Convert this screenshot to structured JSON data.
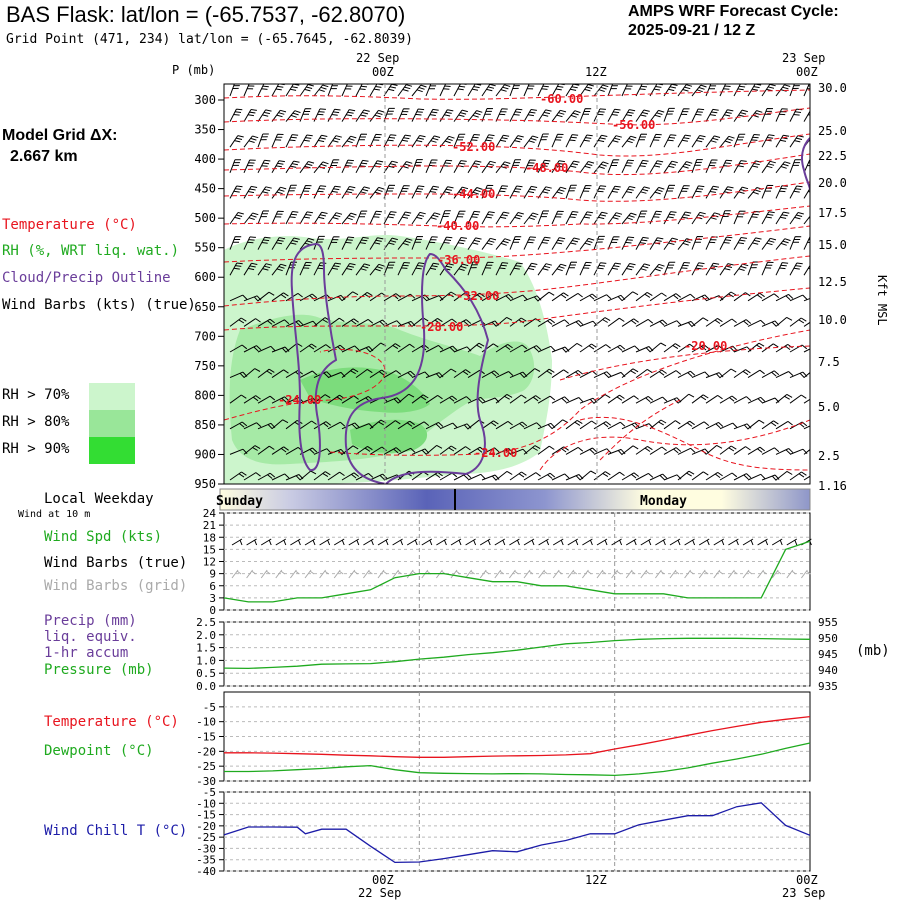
{
  "header": {
    "title": "BAS Flask:  lat/lon = (-65.7537, -62.8070)",
    "grid_point": "Grid Point (471, 234) lat/lon = (-65.7645, -62.8039)",
    "cycle_line1": "AMPS WRF Forecast Cycle:",
    "cycle_line2": "2025-09-21 / 12  Z",
    "model_grid_label": "Model Grid ΔX:",
    "model_grid_value": "2.667 km"
  },
  "time_axis": {
    "top_dates": [
      "22 Sep",
      "23 Sep"
    ],
    "ticks": [
      "00Z",
      "12Z",
      "00Z"
    ],
    "bottom_dates": [
      "22 Sep",
      "23 Sep"
    ]
  },
  "colors": {
    "temperature": "#e8141e",
    "rh": "#1faa1f",
    "cloud": "#6a3d9a",
    "dewpoint": "#1faa1f",
    "pressure": "#1faa1f",
    "precip": "#6a3d9a",
    "windchill": "#1c1ca8",
    "grid_barbs": "#aaaaaa",
    "rh70": "#ccf5cc",
    "rh80": "#99e699",
    "rh90": "#33dd33"
  },
  "legend": {
    "temperature": "Temperature (°C)",
    "rh": "RH (%, WRT liq. wat.)",
    "cloud": "Cloud/Precip Outline",
    "wind": "Wind Barbs (kts) (true)",
    "rh70": "RH > 70%",
    "rh80": "RH > 80%",
    "rh90": "RH > 90%"
  },
  "weekday": {
    "title": "Local Weekday",
    "subtitle": "Wind at 10 m",
    "left_day": "Sunday",
    "right_day": "Monday"
  },
  "panel_labels": {
    "wind_spd": "Wind Spd (kts)",
    "wind_barbs_true": "Wind Barbs (true)",
    "wind_barbs_grid": "Wind Barbs (grid)",
    "precip1": "Precip (mm)",
    "precip2": "liq. equiv.",
    "precip3": "1-hr accum",
    "pressure": "Pressure (mb)",
    "pressure_unit": "(mb)",
    "temperature": "Temperature (°C)",
    "dewpoint": "Dewpoint (°C)",
    "windchill": "Wind Chill T (°C)"
  },
  "chart_data": [
    {
      "type": "heatmap",
      "panel": "vertical cross-section",
      "y_axis_label": "P (mb)",
      "y_ticks": [
        300,
        350,
        400,
        450,
        500,
        550,
        600,
        650,
        700,
        750,
        800,
        850,
        900,
        950
      ],
      "right_axis_label": "Kft MSL",
      "right_ticks": [
        "30.0",
        "25.0",
        "22.5",
        "20.0",
        "17.5",
        "15.0",
        "12.5",
        "10.0",
        "7.5",
        "5.0",
        "2.5",
        "1.16"
      ],
      "temperature_contour_labels": [
        "-60.00",
        "-56.00",
        "-52.00",
        "-48.00",
        "-44.00",
        "-40.00",
        "-36.00",
        "-32.00",
        "-28.00",
        "-24.00",
        "-24.00",
        "-20.00"
      ]
    },
    {
      "type": "line",
      "panel": "wind speed",
      "y_ticks": [
        0,
        3,
        6,
        9,
        12,
        15,
        18,
        21,
        24
      ],
      "ylim": [
        0,
        24
      ],
      "series": [
        {
          "name": "Wind Spd (kts)",
          "x": [
            0,
            3,
            6,
            9,
            12,
            15,
            18,
            21,
            24,
            27,
            30,
            33,
            36,
            39,
            42,
            45,
            48,
            51,
            54,
            57,
            60,
            63,
            66,
            69,
            72
          ],
          "values": [
            3,
            2,
            2,
            3,
            3,
            4,
            5,
            8,
            9,
            9,
            8,
            7,
            7,
            6,
            6,
            5,
            4,
            4,
            4,
            3,
            3,
            3,
            3,
            15,
            17
          ]
        }
      ]
    },
    {
      "type": "line",
      "panel": "precip and pressure",
      "y_ticks": [
        "0.0",
        "0.5",
        "1.0",
        "1.5",
        "2.0",
        "2.5"
      ],
      "right_ticks": [
        935,
        940,
        945,
        950,
        955
      ],
      "series": [
        {
          "name": "Pressure (mb)",
          "x": [
            0,
            3,
            6,
            9,
            12,
            15,
            18,
            21,
            24,
            27,
            30,
            33,
            36,
            39,
            42,
            45,
            48,
            51,
            54,
            57,
            60,
            63,
            66,
            69,
            72
          ],
          "values": [
            940.6,
            940.5,
            940.8,
            941.2,
            941.8,
            941.9,
            942.0,
            942.6,
            943.4,
            944.0,
            944.8,
            945.4,
            946.2,
            947.2,
            948.2,
            948.6,
            949.2,
            949.6,
            949.8,
            949.9,
            949.9,
            949.9,
            949.8,
            949.7,
            949.6
          ]
        }
      ]
    },
    {
      "type": "line",
      "panel": "temperature and dewpoint",
      "y_ticks": [
        -30,
        -25,
        -20,
        -15,
        -10,
        -5
      ],
      "ylim": [
        -30,
        0
      ],
      "series": [
        {
          "name": "Temperature (°C)",
          "x": [
            0,
            3,
            6,
            9,
            12,
            15,
            18,
            21,
            24,
            27,
            30,
            33,
            36,
            39,
            42,
            45,
            48,
            51,
            54,
            57,
            60,
            63,
            66,
            69,
            72
          ],
          "values": [
            -20.5,
            -20.5,
            -20.6,
            -20.8,
            -21.0,
            -21.3,
            -21.5,
            -21.8,
            -22.0,
            -22.0,
            -21.8,
            -21.6,
            -21.5,
            -21.4,
            -21.2,
            -20.8,
            -19.2,
            -17.8,
            -16.2,
            -14.6,
            -13.0,
            -11.6,
            -10.2,
            -9.2,
            -8.3
          ]
        },
        {
          "name": "Dewpoint (°C)",
          "x": [
            0,
            3,
            6,
            9,
            12,
            15,
            18,
            21,
            24,
            27,
            30,
            33,
            36,
            39,
            42,
            45,
            48,
            51,
            54,
            57,
            60,
            63,
            66,
            69,
            72
          ],
          "values": [
            -26.8,
            -26.8,
            -26.6,
            -26.2,
            -25.8,
            -25.2,
            -24.8,
            -26.2,
            -27.2,
            -27.4,
            -27.5,
            -27.6,
            -27.5,
            -27.6,
            -27.8,
            -27.9,
            -28.1,
            -27.6,
            -26.8,
            -25.6,
            -24.0,
            -22.6,
            -21.0,
            -19.0,
            -17.2
          ]
        }
      ]
    },
    {
      "type": "line",
      "panel": "wind chill",
      "y_ticks": [
        -40,
        -35,
        -30,
        -25,
        -20,
        -15,
        -10,
        -5
      ],
      "ylim": [
        -40,
        -5
      ],
      "series": [
        {
          "name": "Wind Chill T (°C)",
          "x": [
            0,
            3,
            6,
            9,
            10,
            12,
            15,
            18,
            21,
            24,
            27,
            30,
            33,
            36,
            39,
            42,
            45,
            48,
            51,
            54,
            57,
            60,
            63,
            66,
            69,
            72
          ],
          "values": [
            -24.0,
            -20.5,
            -20.5,
            -20.6,
            -23.5,
            -21.5,
            -21.5,
            -29.0,
            -36.2,
            -36.0,
            -34.5,
            -32.8,
            -31.0,
            -31.5,
            -28.5,
            -26.5,
            -23.5,
            -23.5,
            -19.5,
            -17.5,
            -15.5,
            -15.5,
            -11.5,
            -9.8,
            -19.8,
            -24.2
          ]
        }
      ]
    }
  ]
}
